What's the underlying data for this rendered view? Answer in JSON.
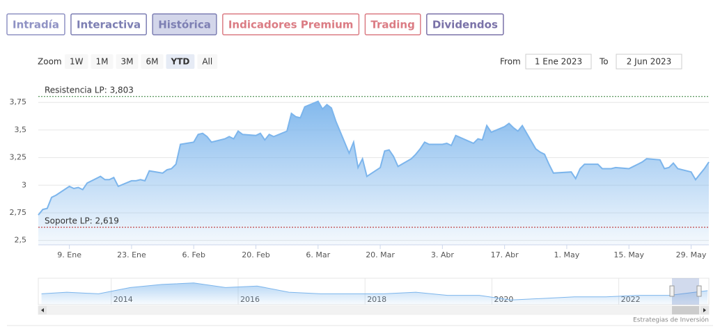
{
  "tabs": [
    {
      "label": "Intradía",
      "color": "#8f92c4",
      "active": false
    },
    {
      "label": "Interactiva",
      "color": "#7d7fb3",
      "active": false
    },
    {
      "label": "Histórica",
      "color": "#7d7fb3",
      "active": true
    },
    {
      "label": "Indicadores Premium",
      "color": "#db7c84",
      "active": false
    },
    {
      "label": "Trading",
      "color": "#db7c84",
      "active": false
    },
    {
      "label": "Dividendos",
      "color": "#7a72a8",
      "active": false
    }
  ],
  "zoom": {
    "label": "Zoom",
    "buttons": [
      "1W",
      "1M",
      "3M",
      "6M",
      "YTD",
      "All"
    ],
    "selected": 4
  },
  "range": {
    "from_label": "From",
    "from": "1 Ene 2023",
    "to_label": "To",
    "to": "2 Jun 2023"
  },
  "chart_data": {
    "type": "area",
    "color": "#7cb5ec",
    "grid": true,
    "xlim": [
      "2023-01-02",
      "2023-06-02"
    ],
    "xticks": [
      {
        "value": "2023-01-09",
        "label": "9. Ene"
      },
      {
        "value": "2023-01-23",
        "label": "23. Ene"
      },
      {
        "value": "2023-02-06",
        "label": "6. Feb"
      },
      {
        "value": "2023-02-20",
        "label": "20. Feb"
      },
      {
        "value": "2023-03-06",
        "label": "6. Mar"
      },
      {
        "value": "2023-03-20",
        "label": "20. Mar"
      },
      {
        "value": "2023-04-03",
        "label": "3. Abr"
      },
      {
        "value": "2023-04-17",
        "label": "17. Abr"
      },
      {
        "value": "2023-05-01",
        "label": "1. May"
      },
      {
        "value": "2023-05-15",
        "label": "15. May"
      },
      {
        "value": "2023-05-29",
        "label": "29. May"
      }
    ],
    "ylim": [
      2.46,
      3.89
    ],
    "yticks": [
      {
        "value": 2.5,
        "label": "2,5"
      },
      {
        "value": 2.75,
        "label": "2,75"
      },
      3,
      {
        "value": 3.25,
        "label": "3,25"
      },
      {
        "value": 3.5,
        "label": "3,5"
      },
      {
        "value": 3.75,
        "label": "3,75"
      }
    ],
    "plot_lines": [
      {
        "label": "Resistencia LP: 3,803",
        "value": 3.803,
        "color": "#2e7d32"
      },
      {
        "label": "Soporte LP: 2,619",
        "value": 2.619,
        "color": "#b71c1c"
      }
    ],
    "x": [
      "2023-01-02",
      "2023-01-03",
      "2023-01-04",
      "2023-01-05",
      "2023-01-06",
      "2023-01-09",
      "2023-01-10",
      "2023-01-11",
      "2023-01-12",
      "2023-01-13",
      "2023-01-16",
      "2023-01-17",
      "2023-01-18",
      "2023-01-19",
      "2023-01-20",
      "2023-01-23",
      "2023-01-24",
      "2023-01-25",
      "2023-01-26",
      "2023-01-27",
      "2023-01-30",
      "2023-01-31",
      "2023-02-01",
      "2023-02-02",
      "2023-02-03",
      "2023-02-06",
      "2023-02-07",
      "2023-02-08",
      "2023-02-09",
      "2023-02-10",
      "2023-02-13",
      "2023-02-14",
      "2023-02-15",
      "2023-02-16",
      "2023-02-17",
      "2023-02-20",
      "2023-02-21",
      "2023-02-22",
      "2023-02-23",
      "2023-02-24",
      "2023-02-27",
      "2023-02-28",
      "2023-03-01",
      "2023-03-02",
      "2023-03-03",
      "2023-03-06",
      "2023-03-07",
      "2023-03-08",
      "2023-03-09",
      "2023-03-10",
      "2023-03-13",
      "2023-03-14",
      "2023-03-15",
      "2023-03-16",
      "2023-03-17",
      "2023-03-20",
      "2023-03-21",
      "2023-03-22",
      "2023-03-23",
      "2023-03-24",
      "2023-03-27",
      "2023-03-28",
      "2023-03-29",
      "2023-03-30",
      "2023-03-31",
      "2023-04-03",
      "2023-04-04",
      "2023-04-05",
      "2023-04-06",
      "2023-04-10",
      "2023-04-11",
      "2023-04-12",
      "2023-04-13",
      "2023-04-14",
      "2023-04-17",
      "2023-04-18",
      "2023-04-19",
      "2023-04-20",
      "2023-04-21",
      "2023-04-24",
      "2023-04-25",
      "2023-04-26",
      "2023-04-27",
      "2023-04-28",
      "2023-05-02",
      "2023-05-03",
      "2023-05-04",
      "2023-05-05",
      "2023-05-08",
      "2023-05-09",
      "2023-05-10",
      "2023-05-11",
      "2023-05-12",
      "2023-05-15",
      "2023-05-16",
      "2023-05-17",
      "2023-05-18",
      "2023-05-19",
      "2023-05-22",
      "2023-05-23",
      "2023-05-24",
      "2023-05-25",
      "2023-05-26",
      "2023-05-29",
      "2023-05-30",
      "2023-05-31",
      "2023-06-01",
      "2023-06-02"
    ],
    "values": [
      2.73,
      2.78,
      2.79,
      2.89,
      2.91,
      2.99,
      2.97,
      2.98,
      2.96,
      3.02,
      3.08,
      3.05,
      3.05,
      3.07,
      2.99,
      3.04,
      3.04,
      3.05,
      3.04,
      3.13,
      3.11,
      3.14,
      3.15,
      3.19,
      3.37,
      3.39,
      3.46,
      3.47,
      3.44,
      3.39,
      3.42,
      3.44,
      3.42,
      3.49,
      3.46,
      3.45,
      3.47,
      3.41,
      3.46,
      3.44,
      3.49,
      3.65,
      3.62,
      3.61,
      3.71,
      3.76,
      3.69,
      3.73,
      3.7,
      3.58,
      3.29,
      3.39,
      3.16,
      3.24,
      3.08,
      3.16,
      3.31,
      3.32,
      3.26,
      3.17,
      3.24,
      3.28,
      3.33,
      3.39,
      3.37,
      3.37,
      3.38,
      3.36,
      3.45,
      3.38,
      3.42,
      3.41,
      3.54,
      3.48,
      3.53,
      3.56,
      3.52,
      3.49,
      3.54,
      3.33,
      3.3,
      3.28,
      3.19,
      3.11,
      3.12,
      3.06,
      3.15,
      3.19,
      3.19,
      3.15,
      3.15,
      3.15,
      3.16,
      3.15,
      3.17,
      3.19,
      3.21,
      3.24,
      3.23,
      3.15,
      3.16,
      3.2,
      3.15,
      3.12,
      3.05,
      3.1,
      3.15,
      3.21
    ],
    "navigator": {
      "xlim": [
        2012.85,
        2023.42
      ],
      "xticks": [
        2014,
        2016,
        2018,
        2020,
        2022
      ],
      "ylim": [
        2.3,
        4.0
      ],
      "x": [
        2012.9,
        2013.3,
        2013.8,
        2014.3,
        2014.8,
        2015.3,
        2015.8,
        2016.3,
        2016.8,
        2017.3,
        2017.8,
        2018.3,
        2018.8,
        2019.3,
        2019.8,
        2020.3,
        2020.8,
        2021.3,
        2021.8,
        2022.3,
        2022.8,
        2023.4
      ],
      "values": [
        3.0,
        3.1,
        3.0,
        3.4,
        3.6,
        3.7,
        3.4,
        3.5,
        3.1,
        3.0,
        3.0,
        3.0,
        3.1,
        2.9,
        2.9,
        2.6,
        2.7,
        2.8,
        2.8,
        2.9,
        2.9,
        3.2
      ]
    }
  },
  "credit": "Estrategias de Inversión"
}
